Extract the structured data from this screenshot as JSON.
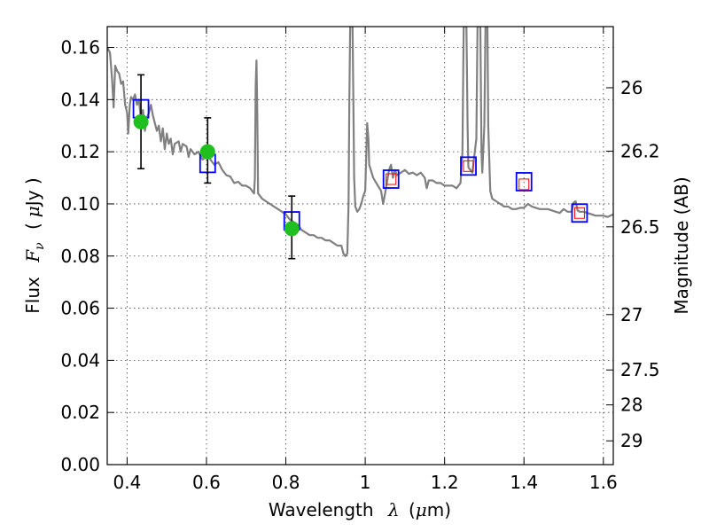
{
  "chart_data": {
    "type": "scatter",
    "xlabel": "Wavelength",
    "xlabel_symbol": "λ",
    "xlabel_unit_prefix": "(",
    "xlabel_unit_mu": "μ",
    "xlabel_unit_suffix": "m)",
    "ylabel": "Flux",
    "ylabel_symbol": "F",
    "ylabel_subscript": "ν",
    "ylabel_unit_prefix": "(",
    "ylabel_unit_mu": "μ",
    "ylabel_unit_suffix": "Jy )",
    "y2label": "Magnitude (AB)",
    "xlim": [
      0.35,
      1.625
    ],
    "ylim": [
      0.0,
      0.168
    ],
    "grid": true,
    "x_ticks": [
      {
        "value": 0.4,
        "label": "0.4"
      },
      {
        "value": 0.6,
        "label": "0.6"
      },
      {
        "value": 0.8,
        "label": "0.8"
      },
      {
        "value": 1.0,
        "label": "1"
      },
      {
        "value": 1.2,
        "label": "1.2"
      },
      {
        "value": 1.4,
        "label": "1.4"
      },
      {
        "value": 1.6,
        "label": "1.6"
      }
    ],
    "y_ticks": [
      {
        "value": 0.0,
        "label": "0.00"
      },
      {
        "value": 0.02,
        "label": "0.02"
      },
      {
        "value": 0.04,
        "label": "0.04"
      },
      {
        "value": 0.06,
        "label": "0.06"
      },
      {
        "value": 0.08,
        "label": "0.08"
      },
      {
        "value": 0.1,
        "label": "0.10"
      },
      {
        "value": 0.12,
        "label": "0.12"
      },
      {
        "value": 0.14,
        "label": "0.14"
      },
      {
        "value": 0.16,
        "label": "0.16"
      }
    ],
    "y2_ticks": [
      {
        "value": 26.0,
        "label": "26"
      },
      {
        "value": 26.2,
        "label": "26.2"
      },
      {
        "value": 26.5,
        "label": "26.5"
      },
      {
        "value": 27.0,
        "label": "27"
      },
      {
        "value": 27.5,
        "label": "27.5"
      },
      {
        "value": 28.0,
        "label": "28"
      },
      {
        "value": 29.0,
        "label": "29"
      }
    ],
    "sed_model": {
      "color": "#808080",
      "points": [
        [
          0.35,
          0.16
        ],
        [
          0.357,
          0.158
        ],
        [
          0.362,
          0.148
        ],
        [
          0.366,
          0.137
        ],
        [
          0.37,
          0.153
        ],
        [
          0.375,
          0.151
        ],
        [
          0.38,
          0.15
        ],
        [
          0.385,
          0.146
        ],
        [
          0.39,
          0.147
        ],
        [
          0.395,
          0.138
        ],
        [
          0.4,
          0.135
        ],
        [
          0.403,
          0.127
        ],
        [
          0.407,
          0.138
        ],
        [
          0.41,
          0.141
        ],
        [
          0.415,
          0.14
        ],
        [
          0.42,
          0.142
        ],
        [
          0.425,
          0.138
        ],
        [
          0.43,
          0.14
        ],
        [
          0.435,
          0.132
        ],
        [
          0.44,
          0.136
        ],
        [
          0.445,
          0.128
        ],
        [
          0.45,
          0.133
        ],
        [
          0.455,
          0.135
        ],
        [
          0.46,
          0.138
        ],
        [
          0.465,
          0.134
        ],
        [
          0.47,
          0.131
        ],
        [
          0.475,
          0.128
        ],
        [
          0.48,
          0.13
        ],
        [
          0.485,
          0.124
        ],
        [
          0.49,
          0.129
        ],
        [
          0.495,
          0.121
        ],
        [
          0.5,
          0.127
        ],
        [
          0.505,
          0.123
        ],
        [
          0.51,
          0.125
        ],
        [
          0.515,
          0.119
        ],
        [
          0.52,
          0.123
        ],
        [
          0.53,
          0.124
        ],
        [
          0.535,
          0.12
        ],
        [
          0.54,
          0.123
        ],
        [
          0.55,
          0.122
        ],
        [
          0.555,
          0.118
        ],
        [
          0.56,
          0.121
        ],
        [
          0.57,
          0.119
        ],
        [
          0.58,
          0.12
        ],
        [
          0.59,
          0.117
        ],
        [
          0.6,
          0.118
        ],
        [
          0.605,
          0.119
        ],
        [
          0.61,
          0.117
        ],
        [
          0.62,
          0.115
        ],
        [
          0.63,
          0.116
        ],
        [
          0.64,
          0.113
        ],
        [
          0.65,
          0.111
        ],
        [
          0.66,
          0.1105
        ],
        [
          0.67,
          0.108
        ],
        [
          0.68,
          0.1085
        ],
        [
          0.69,
          0.107
        ],
        [
          0.7,
          0.107
        ],
        [
          0.71,
          0.106
        ],
        [
          0.715,
          0.105
        ],
        [
          0.72,
          0.104
        ],
        [
          0.722,
          0.11
        ],
        [
          0.724,
          0.145
        ],
        [
          0.726,
          0.155
        ],
        [
          0.728,
          0.135
        ],
        [
          0.73,
          0.104
        ],
        [
          0.74,
          0.102
        ],
        [
          0.75,
          0.101
        ],
        [
          0.76,
          0.1
        ],
        [
          0.77,
          0.099
        ],
        [
          0.78,
          0.098
        ],
        [
          0.79,
          0.097
        ],
        [
          0.8,
          0.096
        ],
        [
          0.81,
          0.094
        ],
        [
          0.82,
          0.093
        ],
        [
          0.83,
          0.092
        ],
        [
          0.84,
          0.09
        ],
        [
          0.85,
          0.089
        ],
        [
          0.86,
          0.088
        ],
        [
          0.87,
          0.088
        ],
        [
          0.88,
          0.087
        ],
        [
          0.89,
          0.087
        ],
        [
          0.9,
          0.086
        ],
        [
          0.91,
          0.086
        ],
        [
          0.92,
          0.085
        ],
        [
          0.93,
          0.084
        ],
        [
          0.94,
          0.084
        ],
        [
          0.945,
          0.081
        ],
        [
          0.95,
          0.08
        ],
        [
          0.955,
          0.081
        ],
        [
          0.958,
          0.1
        ],
        [
          0.96,
          0.14
        ],
        [
          0.962,
          0.168
        ],
        [
          0.968,
          0.168
        ],
        [
          0.97,
          0.14
        ],
        [
          0.972,
          0.11
        ],
        [
          0.975,
          0.099
        ],
        [
          0.98,
          0.097
        ],
        [
          0.985,
          0.098
        ],
        [
          0.99,
          0.1
        ],
        [
          0.995,
          0.103
        ],
        [
          1.0,
          0.105
        ],
        [
          1.003,
          0.12
        ],
        [
          1.005,
          0.131
        ],
        [
          1.008,
          0.125
        ],
        [
          1.01,
          0.115
        ],
        [
          1.02,
          0.11
        ],
        [
          1.03,
          0.1075
        ],
        [
          1.04,
          0.105
        ],
        [
          1.045,
          0.1
        ],
        [
          1.05,
          0.104
        ],
        [
          1.06,
          0.113
        ],
        [
          1.065,
          0.115
        ],
        [
          1.07,
          0.11
        ],
        [
          1.075,
          0.113
        ],
        [
          1.08,
          0.111
        ],
        [
          1.09,
          0.112
        ],
        [
          1.1,
          0.113
        ],
        [
          1.11,
          0.1115
        ],
        [
          1.12,
          0.112
        ],
        [
          1.13,
          0.111
        ],
        [
          1.14,
          0.112
        ],
        [
          1.15,
          0.11
        ],
        [
          1.155,
          0.106
        ],
        [
          1.16,
          0.109
        ],
        [
          1.17,
          0.109
        ],
        [
          1.18,
          0.108
        ],
        [
          1.19,
          0.108
        ],
        [
          1.2,
          0.107
        ],
        [
          1.21,
          0.107
        ],
        [
          1.22,
          0.107
        ],
        [
          1.23,
          0.106
        ],
        [
          1.235,
          0.107
        ],
        [
          1.24,
          0.108
        ],
        [
          1.245,
          0.12
        ],
        [
          1.248,
          0.168
        ],
        [
          1.255,
          0.168
        ],
        [
          1.258,
          0.13
        ],
        [
          1.26,
          0.114
        ],
        [
          1.27,
          0.112
        ],
        [
          1.28,
          0.125
        ],
        [
          1.283,
          0.168
        ],
        [
          1.29,
          0.168
        ],
        [
          1.293,
          0.12
        ],
        [
          1.295,
          0.112
        ],
        [
          1.3,
          0.13
        ],
        [
          1.303,
          0.168
        ],
        [
          1.308,
          0.168
        ],
        [
          1.31,
          0.13
        ],
        [
          1.315,
          0.105
        ],
        [
          1.32,
          0.102
        ],
        [
          1.33,
          0.101
        ],
        [
          1.34,
          0.1
        ],
        [
          1.35,
          0.099
        ],
        [
          1.36,
          0.099
        ],
        [
          1.37,
          0.098
        ],
        [
          1.38,
          0.098
        ],
        [
          1.39,
          0.0985
        ],
        [
          1.4,
          0.0985
        ],
        [
          1.41,
          0.1
        ],
        [
          1.42,
          0.099
        ],
        [
          1.43,
          0.0985
        ],
        [
          1.44,
          0.098
        ],
        [
          1.45,
          0.098
        ],
        [
          1.46,
          0.098
        ],
        [
          1.47,
          0.0975
        ],
        [
          1.48,
          0.097
        ],
        [
          1.49,
          0.0965
        ],
        [
          1.5,
          0.098
        ],
        [
          1.51,
          0.097
        ],
        [
          1.52,
          0.097
        ],
        [
          1.525,
          0.1005
        ],
        [
          1.53,
          0.101
        ],
        [
          1.535,
          0.0975
        ],
        [
          1.54,
          0.097
        ],
        [
          1.55,
          0.097
        ],
        [
          1.56,
          0.0965
        ],
        [
          1.57,
          0.096
        ],
        [
          1.58,
          0.0955
        ],
        [
          1.59,
          0.0955
        ],
        [
          1.6,
          0.0955
        ],
        [
          1.61,
          0.095
        ],
        [
          1.625,
          0.096
        ]
      ]
    },
    "model_photometry": {
      "color": "#0000ff",
      "points": [
        [
          0.435,
          0.1365
        ],
        [
          0.603,
          0.1155
        ],
        [
          0.815,
          0.0935
        ],
        [
          1.065,
          0.1095
        ],
        [
          1.26,
          0.1145
        ],
        [
          1.4,
          0.1085
        ],
        [
          1.54,
          0.0965
        ]
      ]
    },
    "observed_limits": {
      "color": "#ff0000",
      "points": [
        [
          1.065,
          0.1095
        ],
        [
          1.26,
          0.1145
        ],
        [
          1.4,
          0.1075
        ],
        [
          1.54,
          0.0965
        ]
      ]
    },
    "observed_detections": {
      "color": "#1fbf1f",
      "errorbar_color": "#000000",
      "points": [
        {
          "x": 0.435,
          "y": 0.1315,
          "yerr_low": 0.018,
          "yerr_high": 0.018
        },
        {
          "x": 0.603,
          "y": 0.12,
          "yerr_low": 0.012,
          "yerr_high": 0.013
        },
        {
          "x": 0.815,
          "y": 0.0905,
          "yerr_low": 0.0115,
          "yerr_high": 0.0125
        }
      ]
    }
  }
}
